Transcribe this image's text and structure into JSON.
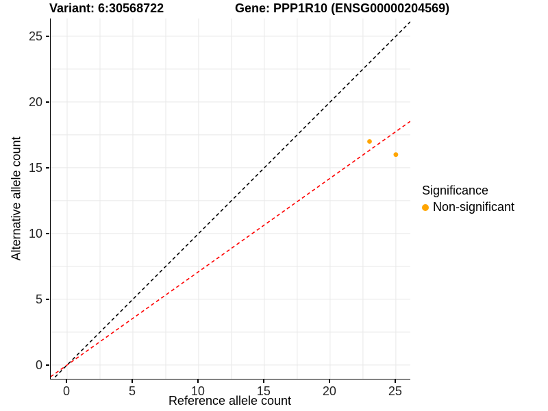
{
  "chart_data": {
    "type": "scatter",
    "title_left": "Variant: 6:30568722",
    "title_right": "Gene: PPP1R10 (ENSG00000204569)",
    "xlabel": "Reference allele count",
    "ylabel": "Alternative allele count",
    "xlim": [
      -1.25,
      26.1
    ],
    "ylim": [
      -1.05,
      26.35
    ],
    "x_ticks": [
      0,
      5,
      10,
      15,
      20,
      25
    ],
    "y_ticks": [
      0,
      5,
      10,
      15,
      20,
      25
    ],
    "grid": {
      "min": 0,
      "max": 25,
      "step": 2.5,
      "color": "#E8E8E8"
    },
    "axis_color": "#000000",
    "tick_text_color": "#262626",
    "points": {
      "series_name": "Non-significant",
      "color": "#FFA500",
      "radius": 3.4,
      "data": [
        {
          "x": 23,
          "y": 17
        },
        {
          "x": 25,
          "y": 16
        }
      ]
    },
    "lines": [
      {
        "name": "identity-line",
        "slope": 1,
        "intercept": 0,
        "color": "#000000",
        "style": "dashed",
        "width": 1.6
      },
      {
        "name": "fitted-ratio-line",
        "slope": 0.71,
        "intercept": 0,
        "color": "#FF0000",
        "style": "dashed",
        "width": 1.6
      }
    ],
    "legend": {
      "title": "Significance",
      "position": "right",
      "items": [
        {
          "label": "Non-significant",
          "color": "#FFA500"
        }
      ]
    }
  }
}
